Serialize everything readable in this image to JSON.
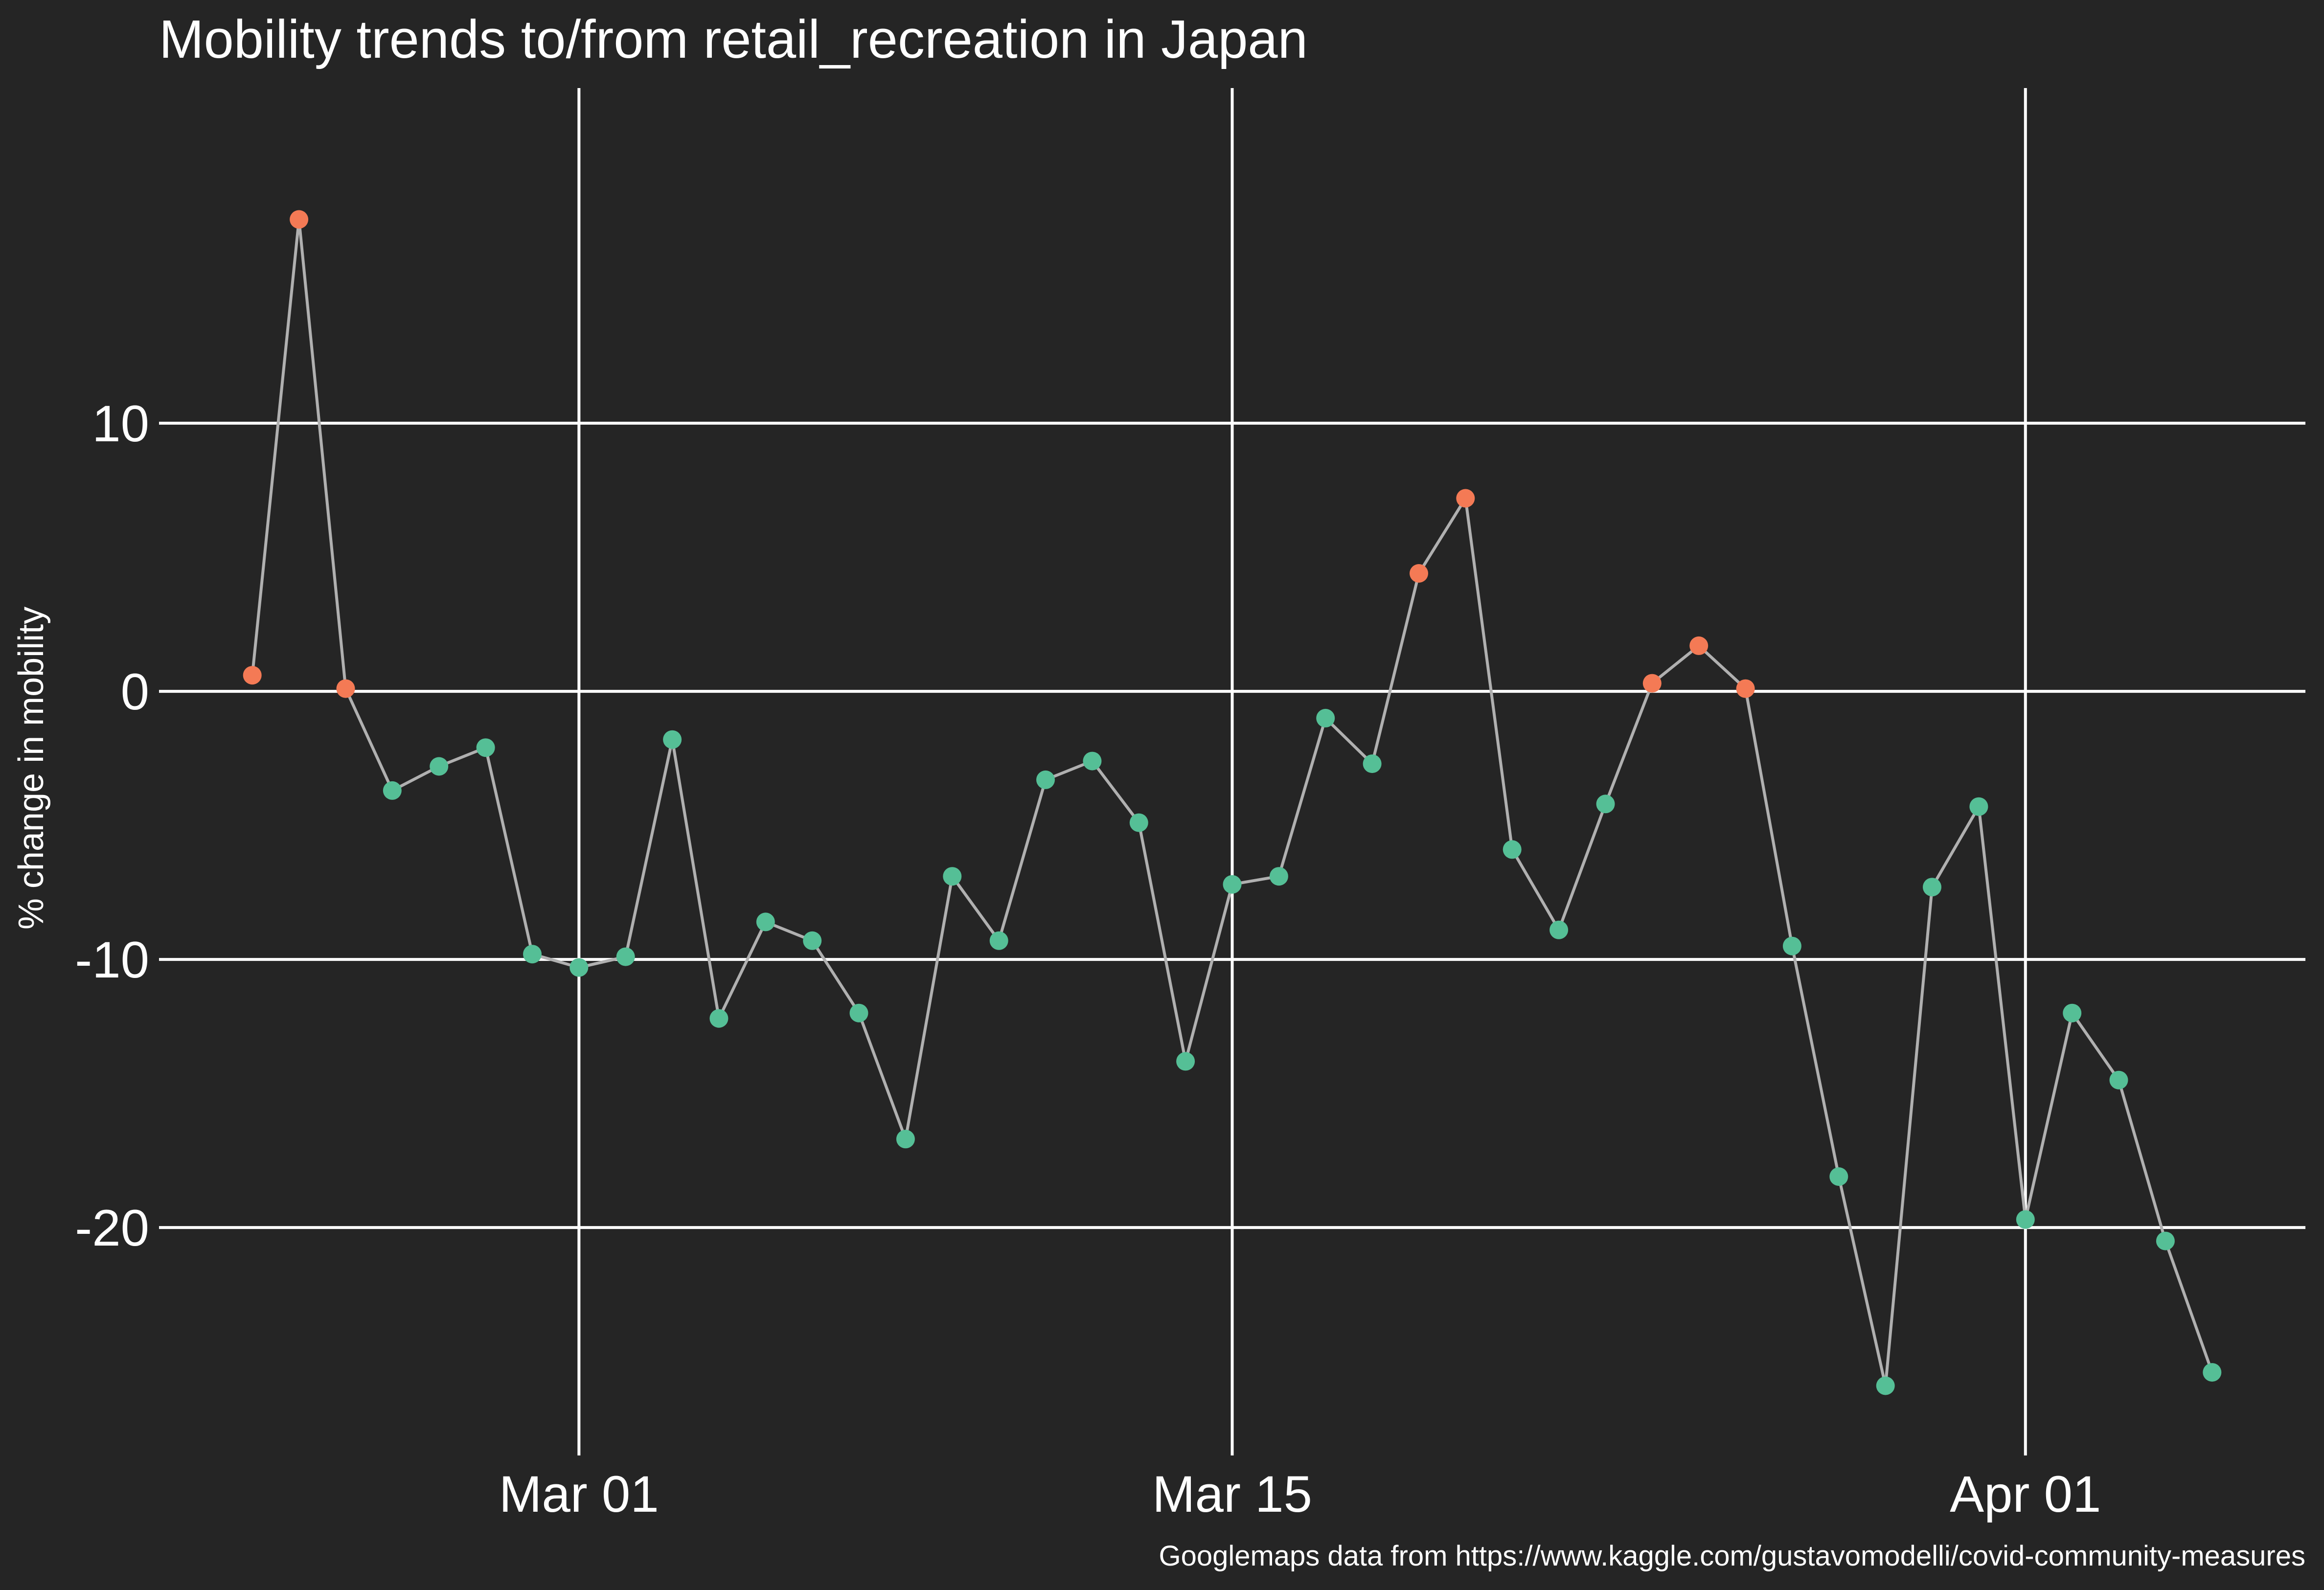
{
  "chart_data": {
    "type": "scatter",
    "title": "Mobility trends to/from retail_recreation in Japan",
    "ylabel": "% change in mobility",
    "xlabel": "",
    "caption": "Googlemaps data from https://www.kaggle.com/gustavomodelli/covid-community-measures",
    "x_ticks": [
      "Mar 01",
      "Mar 15",
      "Apr 01"
    ],
    "y_ticks": [
      "10",
      "0",
      "-10",
      "-20"
    ],
    "ylim": [
      -28.5,
      22.5
    ],
    "xlim": [
      "2020-02-21",
      "2020-04-07"
    ],
    "grid": true,
    "connected": true,
    "colors": {
      "positive": "#f47a55",
      "negative": "#55bf96",
      "line": "#b0b0b0",
      "background": "#252525",
      "grid": "#ffffff"
    },
    "series": [
      {
        "x": [
          "2020-02-23",
          "2020-02-24",
          "2020-02-25",
          "2020-02-26",
          "2020-02-27",
          "2020-02-28",
          "2020-02-29",
          "2020-03-01",
          "2020-03-02",
          "2020-03-03",
          "2020-03-04",
          "2020-03-05",
          "2020-03-06",
          "2020-03-07",
          "2020-03-08",
          "2020-03-09",
          "2020-03-10",
          "2020-03-11",
          "2020-03-12",
          "2020-03-13",
          "2020-03-14",
          "2020-03-15",
          "2020-03-16",
          "2020-03-17",
          "2020-03-18",
          "2020-03-19",
          "2020-03-20",
          "2020-03-21",
          "2020-03-22",
          "2020-03-23",
          "2020-03-24",
          "2020-03-25",
          "2020-03-26",
          "2020-03-27",
          "2020-03-28",
          "2020-03-29",
          "2020-03-30",
          "2020-03-31",
          "2020-04-01",
          "2020-04-02",
          "2020-04-03",
          "2020-04-04",
          "2020-04-05"
        ],
        "y": [
          0.6,
          17.6,
          0.1,
          -3.7,
          -2.8,
          -2.1,
          -9.8,
          -10.3,
          -9.9,
          -1.8,
          -12.2,
          -8.6,
          -9.3,
          -12.0,
          -16.7,
          -6.9,
          -9.3,
          -3.3,
          -2.6,
          -4.9,
          -13.8,
          -7.2,
          -6.9,
          -1.0,
          -2.7,
          4.4,
          7.2,
          -5.9,
          -8.9,
          -4.2,
          0.3,
          1.7,
          0.1,
          -9.5,
          -18.1,
          -25.9,
          -7.3,
          -4.3,
          -19.7,
          -12.0,
          -14.5,
          -20.5,
          -25.4
        ]
      }
    ]
  }
}
